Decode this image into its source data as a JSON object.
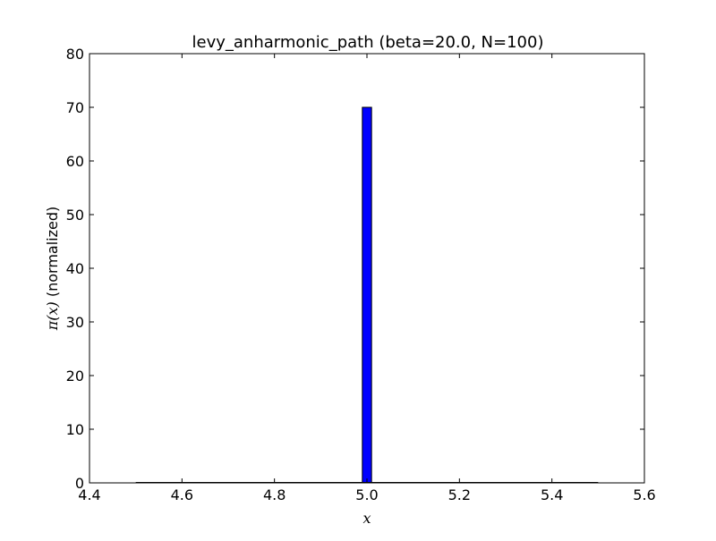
{
  "chart_data": {
    "type": "bar",
    "title": "levy_anharmonic_path (beta=20.0, N=100)",
    "xlabel_math": "x",
    "ylabel_math": "π(x)",
    "ylabel_text": " (normalized)",
    "xlim": [
      4.4,
      5.6
    ],
    "ylim": [
      0,
      80
    ],
    "xticks": [
      "4.4",
      "4.6",
      "4.8",
      "5.0",
      "5.2",
      "5.4",
      "5.6"
    ],
    "yticks": [
      "0",
      "10",
      "20",
      "30",
      "40",
      "50",
      "60",
      "70",
      "80"
    ],
    "histogram_range": [
      4.5,
      5.5
    ],
    "bins": [
      {
        "x0": 4.99,
        "x1": 5.01,
        "value": 70
      }
    ],
    "bar_color": "#0000ff",
    "edge_color": "#000000",
    "grid": false
  }
}
